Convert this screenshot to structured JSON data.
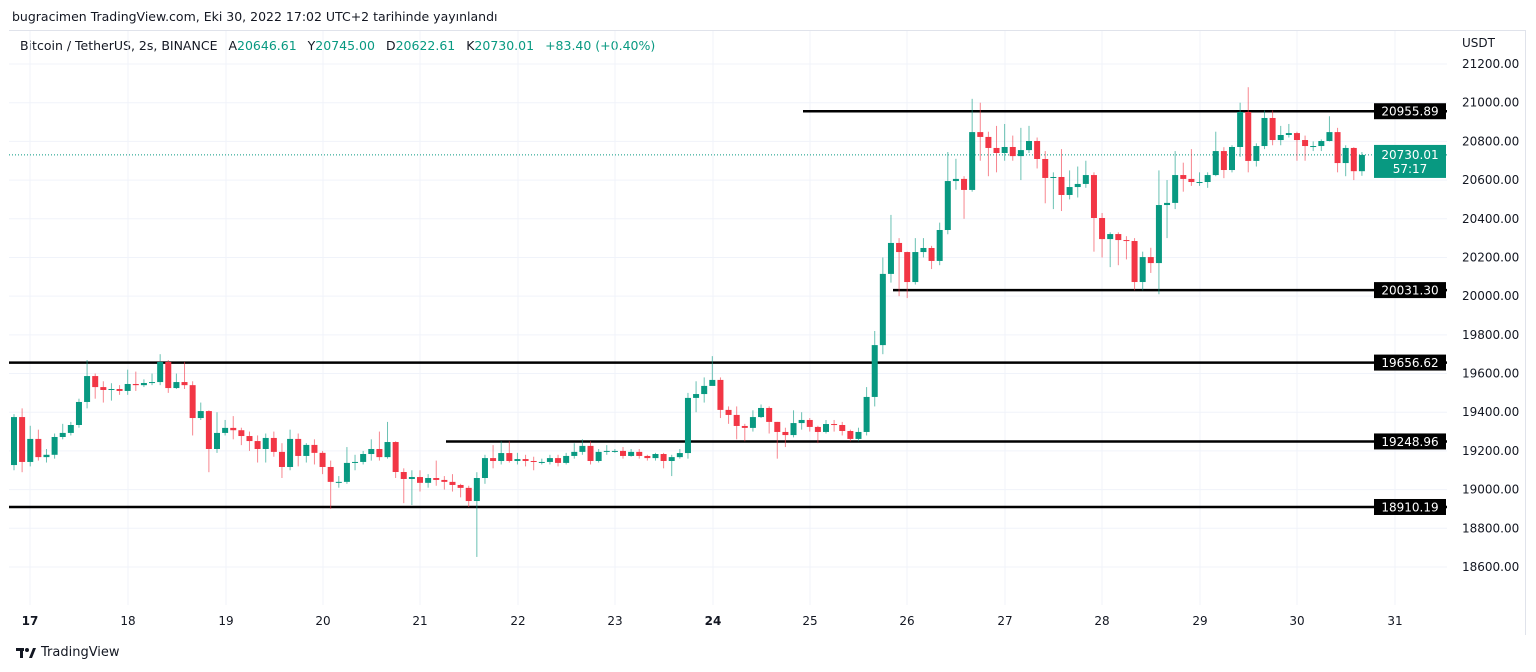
{
  "caption": "bugracimen TradingView.com, Eki 30, 2022 17:02 UTC+2 tarihinde yayınlandı",
  "legend": {
    "symbol": "Bitcoin / TetherUS, 2s, BINANCE",
    "open_key": "A",
    "open": "20646.61",
    "high_key": "Y",
    "high": "20745.00",
    "low_key": "D",
    "low": "20622.61",
    "close_key": "K",
    "close": "20730.01",
    "change": "+83.40 (+0.40%)"
  },
  "footer": {
    "brand": "TradingView"
  },
  "colors": {
    "up": "#089981",
    "down": "#f23645",
    "level": "#000000",
    "grid": "#f0f3fa"
  },
  "chart_data": {
    "type": "candlestick",
    "currency": "USDT",
    "ylim": [
      18500,
      21300
    ],
    "y_ticks": [
      "21200.00",
      "21000.00",
      "20800.00",
      "20600.00",
      "20400.00",
      "20200.00",
      "20000.00",
      "19800.00",
      "19600.00",
      "19400.00",
      "19200.00",
      "19000.00",
      "18800.00",
      "18600.00"
    ],
    "x_ticks": [
      "17",
      "18",
      "19",
      "20",
      "21",
      "22",
      "23",
      "24",
      "25",
      "26",
      "27",
      "28",
      "29",
      "30",
      "31"
    ],
    "grid": true,
    "last_price": {
      "value": "20730.01",
      "countdown": "57:17"
    },
    "levels": [
      "20955.89",
      "20031.30",
      "19656.62",
      "19248.96",
      "18910.19"
    ],
    "candles": [
      [
        19127,
        19390,
        19100,
        19375
      ],
      [
        19375,
        19420,
        19090,
        19143
      ],
      [
        19143,
        19330,
        19120,
        19262
      ],
      [
        19262,
        19310,
        19150,
        19168
      ],
      [
        19168,
        19210,
        19140,
        19180
      ],
      [
        19180,
        19290,
        19160,
        19272
      ],
      [
        19272,
        19340,
        19260,
        19293
      ],
      [
        19293,
        19350,
        19280,
        19334
      ],
      [
        19334,
        19470,
        19320,
        19453
      ],
      [
        19453,
        19670,
        19420,
        19587
      ],
      [
        19587,
        19600,
        19470,
        19530
      ],
      [
        19530,
        19560,
        19450,
        19515
      ],
      [
        19515,
        19550,
        19460,
        19520
      ],
      [
        19520,
        19540,
        19490,
        19510
      ],
      [
        19510,
        19620,
        19490,
        19546
      ],
      [
        19546,
        19610,
        19510,
        19540
      ],
      [
        19540,
        19570,
        19530,
        19551
      ],
      [
        19551,
        19600,
        19540,
        19556
      ],
      [
        19556,
        19700,
        19540,
        19660
      ],
      [
        19660,
        19670,
        19500,
        19525
      ],
      [
        19525,
        19600,
        19520,
        19556
      ],
      [
        19556,
        19660,
        19520,
        19540
      ],
      [
        19540,
        19560,
        19280,
        19370
      ],
      [
        19370,
        19450,
        19360,
        19406
      ],
      [
        19406,
        19410,
        19090,
        19210
      ],
      [
        19210,
        19400,
        19190,
        19293
      ],
      [
        19293,
        19360,
        19280,
        19319
      ],
      [
        19319,
        19380,
        19260,
        19307
      ],
      [
        19307,
        19320,
        19230,
        19277
      ],
      [
        19277,
        19300,
        19200,
        19251
      ],
      [
        19251,
        19280,
        19140,
        19210
      ],
      [
        19210,
        19290,
        19140,
        19267
      ],
      [
        19267,
        19300,
        19170,
        19195
      ],
      [
        19195,
        19240,
        19060,
        19117
      ],
      [
        19117,
        19310,
        19100,
        19262
      ],
      [
        19262,
        19290,
        19120,
        19174
      ],
      [
        19174,
        19240,
        19140,
        19231
      ],
      [
        19231,
        19260,
        19130,
        19190
      ],
      [
        19190,
        19200,
        19080,
        19117
      ],
      [
        19117,
        19150,
        18900,
        19040
      ],
      [
        19040,
        19070,
        19010,
        19040
      ],
      [
        19040,
        19220,
        19030,
        19138
      ],
      [
        19138,
        19180,
        19100,
        19143
      ],
      [
        19143,
        19200,
        19130,
        19184
      ],
      [
        19184,
        19260,
        19150,
        19210
      ],
      [
        19210,
        19300,
        19150,
        19168
      ],
      [
        19168,
        19350,
        19160,
        19246
      ],
      [
        19246,
        19250,
        19060,
        19091
      ],
      [
        19091,
        19110,
        18930,
        19055
      ],
      [
        19055,
        19100,
        18920,
        19065
      ],
      [
        19065,
        19100,
        18990,
        19035
      ],
      [
        19035,
        19080,
        19010,
        19060
      ],
      [
        19060,
        19150,
        19020,
        19050
      ],
      [
        19050,
        19070,
        19000,
        19040
      ],
      [
        19040,
        19080,
        18990,
        19024
      ],
      [
        19024,
        19030,
        18960,
        19009
      ],
      [
        19009,
        19020,
        18910,
        18941
      ],
      [
        18941,
        19090,
        18652,
        19060
      ],
      [
        19060,
        19180,
        19030,
        19163
      ],
      [
        19163,
        19230,
        19110,
        19148
      ],
      [
        19148,
        19250,
        19130,
        19189
      ],
      [
        19189,
        19250,
        19140,
        19148
      ],
      [
        19148,
        19190,
        19130,
        19158
      ],
      [
        19158,
        19180,
        19120,
        19148
      ],
      [
        19148,
        19170,
        19100,
        19143
      ],
      [
        19143,
        19160,
        19130,
        19143
      ],
      [
        19143,
        19180,
        19130,
        19163
      ],
      [
        19163,
        19180,
        19120,
        19138
      ],
      [
        19138,
        19190,
        19130,
        19174
      ],
      [
        19174,
        19240,
        19160,
        19195
      ],
      [
        19195,
        19260,
        19180,
        19226
      ],
      [
        19226,
        19250,
        19130,
        19148
      ],
      [
        19148,
        19210,
        19140,
        19195
      ],
      [
        19195,
        19230,
        19180,
        19200
      ],
      [
        19200,
        19210,
        19190,
        19200
      ],
      [
        19200,
        19220,
        19160,
        19174
      ],
      [
        19174,
        19210,
        19170,
        19195
      ],
      [
        19195,
        19210,
        19160,
        19174
      ],
      [
        19174,
        19180,
        19150,
        19163
      ],
      [
        19163,
        19190,
        19150,
        19184
      ],
      [
        19184,
        19190,
        19110,
        19148
      ],
      [
        19148,
        19180,
        19070,
        19168
      ],
      [
        19168,
        19210,
        19160,
        19189
      ],
      [
        19189,
        19500,
        19160,
        19474
      ],
      [
        19474,
        19560,
        19400,
        19494
      ],
      [
        19494,
        19580,
        19450,
        19536
      ],
      [
        19536,
        19690,
        19540,
        19567
      ],
      [
        19567,
        19580,
        19370,
        19412
      ],
      [
        19412,
        19430,
        19340,
        19386
      ],
      [
        19386,
        19430,
        19260,
        19329
      ],
      [
        19329,
        19340,
        19250,
        19319
      ],
      [
        19319,
        19410,
        19300,
        19375
      ],
      [
        19375,
        19440,
        19370,
        19422
      ],
      [
        19422,
        19430,
        19290,
        19350
      ],
      [
        19350,
        19350,
        19160,
        19298
      ],
      [
        19298,
        19320,
        19220,
        19282
      ],
      [
        19282,
        19410,
        19270,
        19344
      ],
      [
        19344,
        19400,
        19310,
        19360
      ],
      [
        19360,
        19370,
        19300,
        19324
      ],
      [
        19324,
        19330,
        19240,
        19298
      ],
      [
        19298,
        19360,
        19290,
        19339
      ],
      [
        19339,
        19360,
        19300,
        19334
      ],
      [
        19334,
        19350,
        19280,
        19303
      ],
      [
        19303,
        19310,
        19250,
        19262
      ],
      [
        19262,
        19320,
        19250,
        19298
      ],
      [
        19298,
        19530,
        19280,
        19479
      ],
      [
        19479,
        19820,
        19430,
        19747
      ],
      [
        19747,
        20200,
        19700,
        20115
      ],
      [
        20115,
        20420,
        20070,
        20275
      ],
      [
        20275,
        20300,
        20000,
        20228
      ],
      [
        20228,
        20230,
        19990,
        20073
      ],
      [
        20073,
        20300,
        20060,
        20228
      ],
      [
        20228,
        20300,
        20200,
        20249
      ],
      [
        20249,
        20260,
        20140,
        20182
      ],
      [
        20182,
        20380,
        20160,
        20342
      ],
      [
        20342,
        20745,
        20320,
        20595
      ],
      [
        20595,
        20710,
        20550,
        20606
      ],
      [
        20606,
        20620,
        20400,
        20549
      ],
      [
        20549,
        21020,
        20540,
        20848
      ],
      [
        20848,
        21000,
        20700,
        20823
      ],
      [
        20823,
        20850,
        20620,
        20766
      ],
      [
        20766,
        20880,
        20640,
        20740
      ],
      [
        20740,
        20890,
        20700,
        20771
      ],
      [
        20771,
        20830,
        20700,
        20724
      ],
      [
        20724,
        20870,
        20600,
        20755
      ],
      [
        20755,
        20880,
        20740,
        20802
      ],
      [
        20802,
        20820,
        20660,
        20709
      ],
      [
        20709,
        20750,
        20480,
        20611
      ],
      [
        20611,
        20640,
        20450,
        20616
      ],
      [
        20616,
        20760,
        20440,
        20523
      ],
      [
        20523,
        20650,
        20500,
        20564
      ],
      [
        20564,
        20670,
        20510,
        20580
      ],
      [
        20580,
        20700,
        20560,
        20626
      ],
      [
        20626,
        20640,
        20230,
        20404
      ],
      [
        20404,
        20430,
        20200,
        20295
      ],
      [
        20295,
        20330,
        20150,
        20321
      ],
      [
        20321,
        20330,
        20160,
        20290
      ],
      [
        20290,
        20310,
        20190,
        20285
      ],
      [
        20285,
        20300,
        20030,
        20073
      ],
      [
        20073,
        20230,
        20030,
        20202
      ],
      [
        20202,
        20250,
        20120,
        20171
      ],
      [
        20171,
        20650,
        20010,
        20471
      ],
      [
        20471,
        20600,
        20300,
        20482
      ],
      [
        20482,
        20750,
        20450,
        20626
      ],
      [
        20626,
        20690,
        20540,
        20606
      ],
      [
        20606,
        20760,
        20570,
        20590
      ],
      [
        20590,
        20640,
        20570,
        20590
      ],
      [
        20590,
        20640,
        20560,
        20626
      ],
      [
        20626,
        20850,
        20620,
        20750
      ],
      [
        20750,
        20770,
        20610,
        20652
      ],
      [
        20652,
        20780,
        20640,
        20771
      ],
      [
        20771,
        21000,
        20720,
        20952
      ],
      [
        20952,
        21080,
        20640,
        20699
      ],
      [
        20699,
        20790,
        20670,
        20776
      ],
      [
        20776,
        20960,
        20760,
        20921
      ],
      [
        20921,
        20960,
        20780,
        20807
      ],
      [
        20807,
        20880,
        20780,
        20833
      ],
      [
        20833,
        20890,
        20820,
        20843
      ],
      [
        20843,
        20850,
        20700,
        20807
      ],
      [
        20807,
        20830,
        20700,
        20776
      ],
      [
        20776,
        20800,
        20750,
        20776
      ],
      [
        20776,
        20810,
        20750,
        20802
      ],
      [
        20802,
        20930,
        20800,
        20848
      ],
      [
        20848,
        20870,
        20640,
        20688
      ],
      [
        20688,
        20780,
        20620,
        20766
      ],
      [
        20766,
        20770,
        20600,
        20646
      ],
      [
        20646,
        20745,
        20622,
        20730
      ]
    ]
  }
}
